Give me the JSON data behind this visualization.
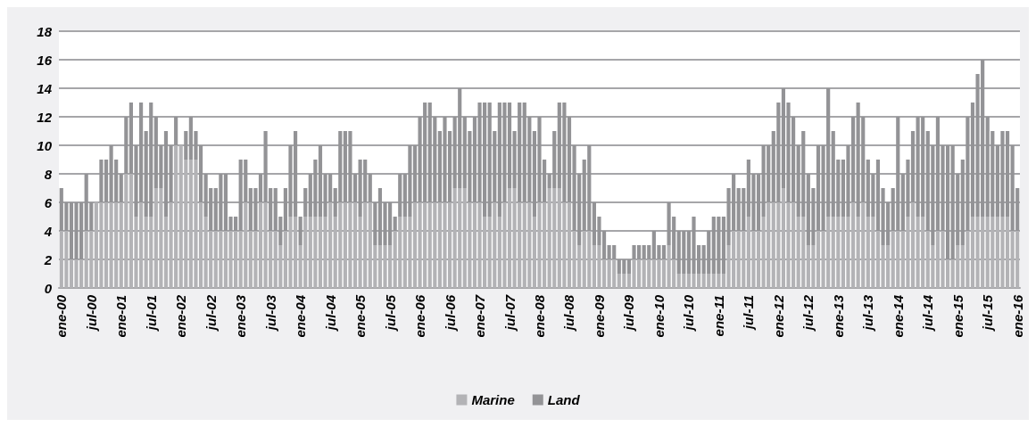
{
  "chart_data": {
    "type": "bar",
    "stacked": true,
    "categories": [
      "ene-00",
      null,
      null,
      null,
      null,
      null,
      "jul-00",
      null,
      null,
      null,
      null,
      null,
      "ene-01",
      null,
      null,
      null,
      null,
      null,
      "jul-01",
      null,
      null,
      null,
      null,
      null,
      "ene-02",
      null,
      null,
      null,
      null,
      null,
      "jul-02",
      null,
      null,
      null,
      null,
      null,
      "ene-03",
      null,
      null,
      null,
      null,
      null,
      "jul-03",
      null,
      null,
      null,
      null,
      null,
      "ene-04",
      null,
      null,
      null,
      null,
      null,
      "jul-04",
      null,
      null,
      null,
      null,
      null,
      "ene-05",
      null,
      null,
      null,
      null,
      null,
      "jul-05",
      null,
      null,
      null,
      null,
      null,
      "ene-06",
      null,
      null,
      null,
      null,
      null,
      "jul-06",
      null,
      null,
      null,
      null,
      null,
      "ene-07",
      null,
      null,
      null,
      null,
      null,
      "jul-07",
      null,
      null,
      null,
      null,
      null,
      "ene-08",
      null,
      null,
      null,
      null,
      null,
      "jul-08",
      null,
      null,
      null,
      null,
      null,
      "ene-09",
      null,
      null,
      null,
      null,
      null,
      "jul-09",
      null,
      null,
      null,
      null,
      null,
      "ene-10",
      null,
      null,
      null,
      null,
      null,
      "jul-10",
      null,
      null,
      null,
      null,
      null,
      "ene-11",
      null,
      null,
      null,
      null,
      null,
      "jul-11",
      null,
      null,
      null,
      null,
      null,
      "ene-12",
      null,
      null,
      null,
      null,
      null,
      "jul-12",
      null,
      null,
      null,
      null,
      null,
      "ene-13",
      null,
      null,
      null,
      null,
      null,
      "jul-13",
      null,
      null,
      null,
      null,
      null,
      "ene-14",
      null,
      null,
      null,
      null,
      null,
      "jul-14",
      null,
      null,
      null,
      null,
      null,
      "ene-15",
      null,
      null,
      null,
      null,
      null,
      "jul-15",
      null,
      null,
      null,
      null,
      null,
      "ene-16"
    ],
    "series": [
      {
        "name": "Marine",
        "color": "#b3b3b6",
        "values": [
          4,
          4,
          2,
          2,
          2,
          4,
          4,
          6,
          6,
          6,
          6,
          6,
          6,
          8,
          8,
          5,
          6,
          5,
          5,
          7,
          7,
          5,
          6,
          10,
          10,
          9,
          9,
          9,
          6,
          5,
          4,
          4,
          4,
          4,
          4,
          4,
          4,
          6,
          4,
          4,
          6,
          6,
          4,
          4,
          3,
          4,
          5,
          5,
          3,
          5,
          5,
          5,
          5,
          5,
          6,
          5,
          6,
          6,
          6,
          6,
          5,
          6,
          6,
          3,
          3,
          3,
          3,
          4,
          5,
          5,
          5,
          6,
          6,
          6,
          6,
          6,
          6,
          6,
          6,
          7,
          7,
          7,
          6,
          6,
          6,
          5,
          5,
          6,
          5,
          6,
          7,
          7,
          6,
          6,
          6,
          5,
          6,
          6,
          7,
          7,
          7,
          6,
          6,
          4,
          3,
          4,
          4,
          3,
          3,
          2,
          2,
          2,
          1,
          1,
          1,
          2,
          2,
          2,
          2,
          2,
          2,
          2,
          3,
          2,
          1,
          1,
          1,
          1,
          1,
          1,
          1,
          1,
          1,
          1,
          3,
          4,
          4,
          4,
          5,
          4,
          4,
          5,
          6,
          6,
          6,
          7,
          6,
          6,
          5,
          5,
          3,
          3,
          4,
          4,
          5,
          5,
          5,
          5,
          5,
          6,
          5,
          6,
          5,
          5,
          4,
          3,
          3,
          4,
          4,
          4,
          5,
          6,
          5,
          5,
          4,
          3,
          4,
          4,
          2,
          2,
          3,
          3,
          4,
          5,
          5,
          5,
          5,
          5,
          5,
          5,
          5,
          4,
          4
        ]
      },
      {
        "name": "Land",
        "color": "#939396",
        "values": [
          3,
          2,
          4,
          4,
          4,
          4,
          2,
          0,
          3,
          3,
          4,
          3,
          2,
          4,
          5,
          5,
          7,
          6,
          8,
          5,
          3,
          6,
          4,
          2,
          0,
          2,
          3,
          2,
          4,
          3,
          3,
          3,
          4,
          4,
          1,
          1,
          5,
          3,
          3,
          3,
          2,
          5,
          3,
          3,
          2,
          3,
          5,
          6,
          2,
          2,
          3,
          4,
          5,
          3,
          2,
          2,
          5,
          5,
          5,
          2,
          4,
          3,
          2,
          3,
          4,
          3,
          3,
          1,
          3,
          3,
          5,
          4,
          6,
          7,
          7,
          6,
          5,
          6,
          5,
          5,
          7,
          5,
          5,
          6,
          7,
          8,
          8,
          5,
          8,
          7,
          6,
          4,
          7,
          7,
          6,
          6,
          6,
          3,
          1,
          4,
          6,
          7,
          6,
          6,
          5,
          5,
          6,
          3,
          2,
          2,
          1,
          1,
          1,
          1,
          1,
          1,
          1,
          1,
          1,
          2,
          1,
          1,
          3,
          3,
          3,
          3,
          3,
          4,
          2,
          2,
          3,
          4,
          4,
          4,
          4,
          4,
          3,
          3,
          4,
          4,
          4,
          5,
          4,
          5,
          7,
          7,
          7,
          6,
          5,
          6,
          5,
          4,
          6,
          6,
          9,
          6,
          4,
          4,
          5,
          6,
          8,
          6,
          4,
          3,
          5,
          4,
          3,
          3,
          8,
          4,
          4,
          5,
          7,
          7,
          7,
          7,
          8,
          6,
          8,
          8,
          5,
          6,
          8,
          8,
          10,
          11,
          7,
          6,
          5,
          6,
          6,
          6,
          3
        ]
      }
    ],
    "ylim": [
      0,
      18
    ],
    "yticks": [
      0,
      2,
      4,
      6,
      8,
      10,
      12,
      14,
      16,
      18
    ],
    "grid": "y",
    "legend": "bottom"
  }
}
